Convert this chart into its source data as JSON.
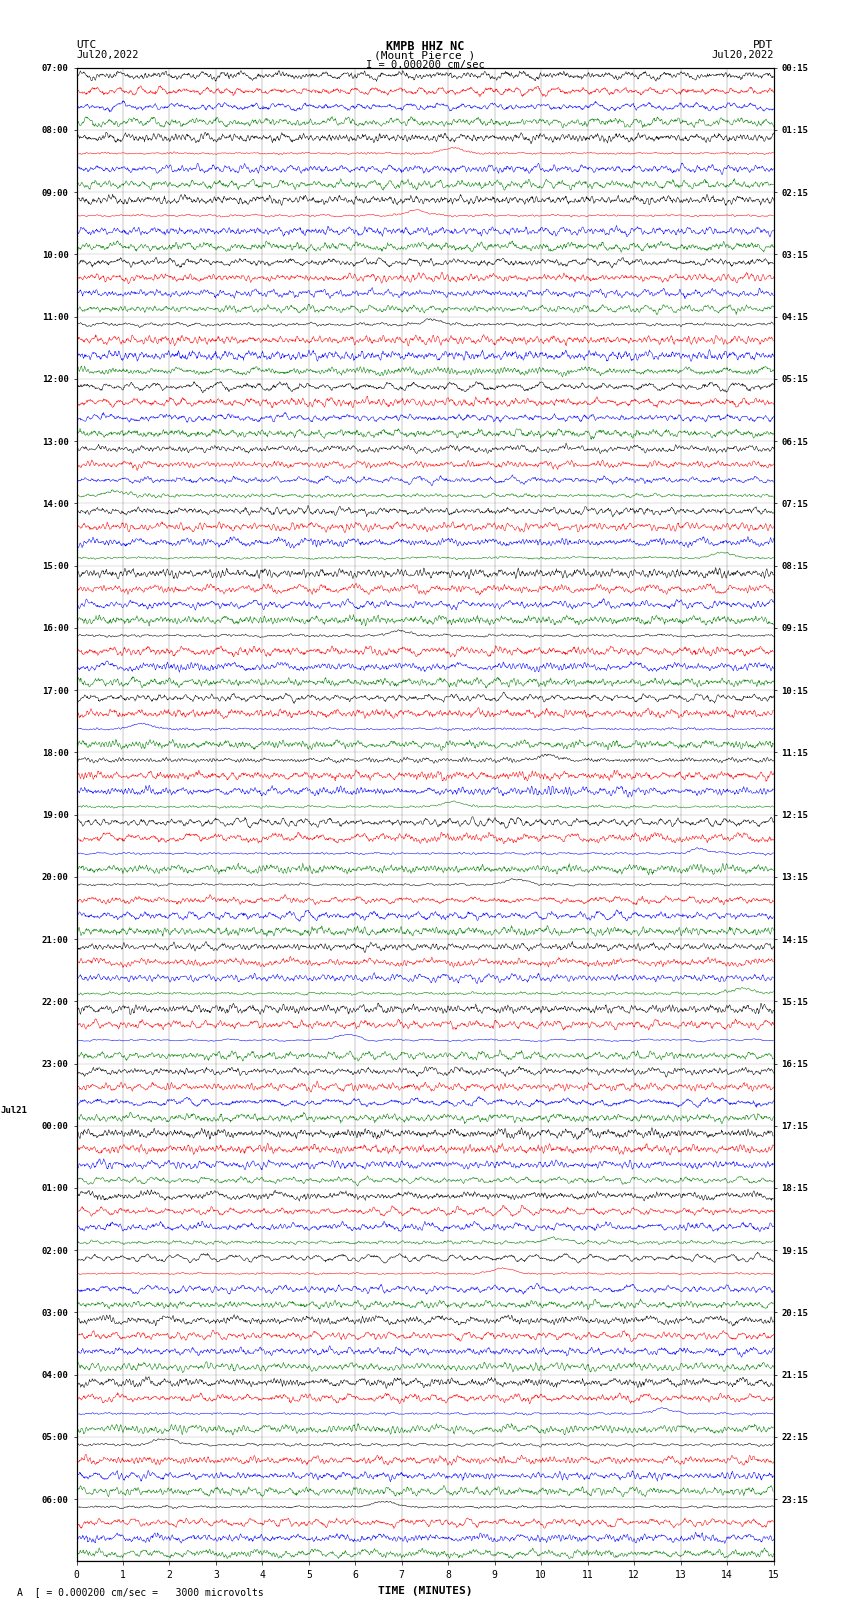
{
  "title_line1": "KMPB HHZ NC",
  "title_line2": "(Mount Pierce )",
  "scale_label": "I = 0.000200 cm/sec",
  "bottom_label": "A  [ = 0.000200 cm/sec =   3000 microvolts",
  "utc_label": "UTC",
  "pdt_label": "PDT",
  "date_left": "Jul20,2022",
  "date_right": "Jul20,2022",
  "xlabel": "TIME (MINUTES)",
  "xlim": [
    0,
    15
  ],
  "xticks": [
    0,
    1,
    2,
    3,
    4,
    5,
    6,
    7,
    8,
    9,
    10,
    11,
    12,
    13,
    14,
    15
  ],
  "bg_color": "#ffffff",
  "colors": [
    "black",
    "red",
    "blue",
    "green"
  ],
  "left_labels": [
    [
      "07:00",
      0
    ],
    [
      "08:00",
      4
    ],
    [
      "09:00",
      8
    ],
    [
      "10:00",
      12
    ],
    [
      "11:00",
      16
    ],
    [
      "12:00",
      20
    ],
    [
      "13:00",
      24
    ],
    [
      "14:00",
      28
    ],
    [
      "15:00",
      32
    ],
    [
      "16:00",
      36
    ],
    [
      "17:00",
      40
    ],
    [
      "18:00",
      44
    ],
    [
      "19:00",
      48
    ],
    [
      "20:00",
      52
    ],
    [
      "21:00",
      56
    ],
    [
      "22:00",
      60
    ],
    [
      "23:00",
      64
    ],
    [
      "Jul21",
      68
    ],
    [
      "00:00",
      68
    ],
    [
      "01:00",
      72
    ],
    [
      "02:00",
      76
    ],
    [
      "03:00",
      80
    ],
    [
      "04:00",
      84
    ],
    [
      "05:00",
      88
    ],
    [
      "06:00",
      92
    ]
  ],
  "right_labels": [
    [
      "00:15",
      0
    ],
    [
      "01:15",
      4
    ],
    [
      "02:15",
      8
    ],
    [
      "03:15",
      12
    ],
    [
      "04:15",
      16
    ],
    [
      "05:15",
      20
    ],
    [
      "06:15",
      24
    ],
    [
      "07:15",
      28
    ],
    [
      "08:15",
      32
    ],
    [
      "09:15",
      36
    ],
    [
      "10:15",
      40
    ],
    [
      "11:15",
      44
    ],
    [
      "12:15",
      48
    ],
    [
      "13:15",
      52
    ],
    [
      "14:15",
      56
    ],
    [
      "15:15",
      60
    ],
    [
      "16:15",
      64
    ],
    [
      "17:15",
      68
    ],
    [
      "18:15",
      72
    ],
    [
      "19:15",
      76
    ],
    [
      "20:15",
      80
    ],
    [
      "21:15",
      84
    ],
    [
      "22:15",
      88
    ],
    [
      "23:15",
      92
    ]
  ],
  "n_rows": 96,
  "n_groups": 24,
  "seed": 12345
}
